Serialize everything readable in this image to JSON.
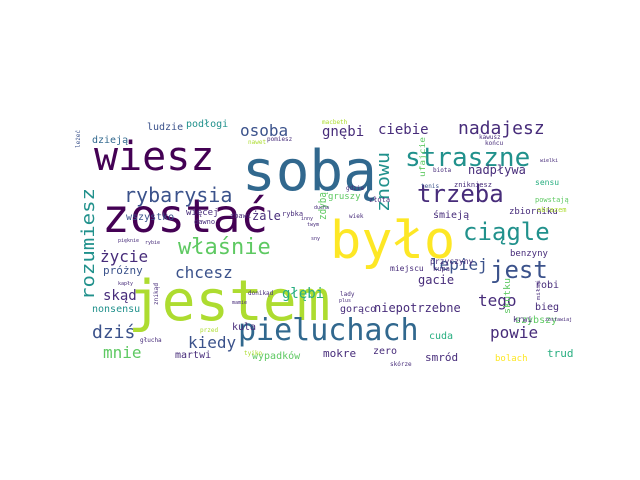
{
  "palette": {
    "dark_purple": "#440154",
    "indigo": "#472c7a",
    "slate_blue": "#3b528b",
    "steel_blue": "#31688e",
    "teal": "#21918c",
    "sea_green": "#28ae80",
    "green": "#5ec962",
    "lime": "#addc30",
    "yellow": "#fde725"
  },
  "words": [
    {
      "text": "jestem",
      "color": "lime"
    },
    {
      "text": "sobą",
      "color": "steel_blue"
    },
    {
      "text": "było",
      "color": "yellow"
    },
    {
      "text": "zostać",
      "color": "dark_purple"
    },
    {
      "text": "wiesz",
      "color": "dark_purple"
    },
    {
      "text": "pieluchach",
      "color": "steel_blue"
    },
    {
      "text": "straszne",
      "color": "teal"
    },
    {
      "text": "trzeba",
      "color": "indigo"
    },
    {
      "text": "ciągle",
      "color": "teal"
    },
    {
      "text": "jest",
      "color": "slate_blue"
    },
    {
      "text": "właśnie",
      "color": "green"
    },
    {
      "text": "rozumiesz",
      "color": "teal"
    },
    {
      "text": "rybarysia",
      "color": "slate_blue"
    },
    {
      "text": "znowu",
      "color": "teal"
    },
    {
      "text": "nadajesz",
      "color": "indigo"
    },
    {
      "text": "osoba",
      "color": "slate_blue"
    },
    {
      "text": "lepiej",
      "color": "slate_blue"
    },
    {
      "text": "powie",
      "color": "indigo"
    },
    {
      "text": "dziś",
      "color": "slate_blue"
    },
    {
      "text": "kiedy",
      "color": "slate_blue"
    },
    {
      "text": "mnie",
      "color": "green"
    },
    {
      "text": "życie",
      "color": "indigo"
    },
    {
      "text": "chcesz",
      "color": "slate_blue"
    },
    {
      "text": "tego",
      "color": "indigo"
    },
    {
      "text": "ciebie",
      "color": "indigo"
    },
    {
      "text": "gnębi",
      "color": "indigo"
    },
    {
      "text": "skąd",
      "color": "indigo"
    },
    {
      "text": "głębi",
      "color": "sea_green"
    },
    {
      "text": "niepotrzebne",
      "color": "indigo"
    },
    {
      "text": "nadpływa",
      "color": "indigo"
    },
    {
      "text": "gacie",
      "color": "indigo"
    },
    {
      "text": "wszystko",
      "color": "slate_blue"
    },
    {
      "text": "żale",
      "color": "indigo"
    },
    {
      "text": "próżny",
      "color": "slate_blue"
    },
    {
      "text": "zdybą",
      "color": "green"
    },
    {
      "text": "dzieją",
      "color": "steel_blue"
    },
    {
      "text": "ludzie",
      "color": "slate_blue"
    },
    {
      "text": "podłogi",
      "color": "teal"
    },
    {
      "text": "więcej",
      "color": "indigo"
    },
    {
      "text": "robi",
      "color": "indigo"
    },
    {
      "text": "bieg",
      "color": "indigo"
    },
    {
      "text": "smród",
      "color": "indigo"
    },
    {
      "text": "trud",
      "color": "sea_green"
    },
    {
      "text": "mokre",
      "color": "indigo"
    },
    {
      "text": "gorąco",
      "color": "indigo"
    },
    {
      "text": "martwi",
      "color": "indigo"
    },
    {
      "text": "kula",
      "color": "indigo"
    },
    {
      "text": "cuda",
      "color": "sea_green"
    },
    {
      "text": "szybszy",
      "color": "green"
    },
    {
      "text": "nonsensu",
      "color": "teal"
    },
    {
      "text": "wypadków",
      "color": "green"
    },
    {
      "text": "zero",
      "color": "indigo"
    },
    {
      "text": "krwi",
      "color": "indigo"
    },
    {
      "text": "benzyny",
      "color": "indigo"
    },
    {
      "text": "zbiorniku",
      "color": "indigo"
    },
    {
      "text": "śmieją",
      "color": "indigo"
    },
    {
      "text": "gruszy",
      "color": "green"
    },
    {
      "text": "sensu",
      "color": "sea_green"
    },
    {
      "text": "skutku",
      "color": "green"
    },
    {
      "text": "przyczyny",
      "color": "indigo"
    },
    {
      "text": "miejscu",
      "color": "indigo"
    },
    {
      "text": "bolach",
      "color": "yellow"
    },
    {
      "text": "kupa",
      "color": "indigo"
    },
    {
      "text": "ufajcie",
      "color": "green"
    },
    {
      "text": "tenis",
      "color": "slate_blue"
    },
    {
      "text": "złota",
      "color": "indigo"
    },
    {
      "text": "zbawi",
      "color": "indigo"
    },
    {
      "text": "dawno",
      "color": "indigo"
    },
    {
      "text": "rybka",
      "color": "indigo"
    },
    {
      "text": "wiek",
      "color": "indigo"
    },
    {
      "text": "gdzie",
      "color": "indigo"
    },
    {
      "text": "znikniesz",
      "color": "indigo"
    },
    {
      "text": "powstają",
      "color": "green"
    },
    {
      "text": "obrazem",
      "color": "lime"
    },
    {
      "text": "końcu",
      "color": "indigo"
    },
    {
      "text": "kawusz",
      "color": "indigo"
    },
    {
      "text": "znikąd",
      "color": "indigo"
    },
    {
      "text": "głucha",
      "color": "indigo"
    },
    {
      "text": "donikąd",
      "color": "indigo"
    },
    {
      "text": "lady",
      "color": "indigo"
    },
    {
      "text": "tyiko",
      "color": "lime"
    },
    {
      "text": "przed",
      "color": "lime"
    },
    {
      "text": "skórze",
      "color": "indigo"
    },
    {
      "text": "macbeth",
      "color": "lime"
    },
    {
      "text": "nawet",
      "color": "lime"
    },
    {
      "text": "pomiesz",
      "color": "indigo"
    },
    {
      "text": "biota",
      "color": "indigo"
    },
    {
      "text": "leżeć",
      "color": "slate_blue"
    },
    {
      "text": "pięknie",
      "color": "indigo"
    },
    {
      "text": "sny",
      "color": "indigo"
    },
    {
      "text": "wielki",
      "color": "indigo"
    },
    {
      "text": "miłaś",
      "color": "indigo"
    },
    {
      "text": "zostawiaj",
      "color": "indigo"
    },
    {
      "text": "inny",
      "color": "indigo"
    },
    {
      "text": "twym",
      "color": "indigo"
    },
    {
      "text": "ducha",
      "color": "indigo"
    },
    {
      "text": "rybie",
      "color": "indigo"
    },
    {
      "text": "plus",
      "color": "indigo"
    },
    {
      "text": "mamie",
      "color": "indigo"
    },
    {
      "text": "kapły",
      "color": "indigo"
    }
  ]
}
